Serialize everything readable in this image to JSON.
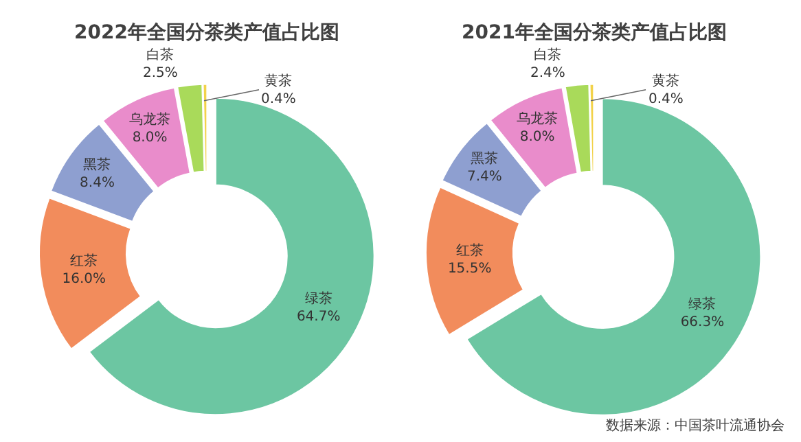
{
  "chart_data": [
    {
      "type": "donut",
      "title": "2022年全国分茶类产值占比图",
      "categories": [
        "绿茶",
        "红茶",
        "黑茶",
        "乌龙茶",
        "白茶",
        "黄茶"
      ],
      "values": [
        64.7,
        16.0,
        8.4,
        8.0,
        2.5,
        0.4
      ],
      "value_labels": [
        "64.7%",
        "16.0%",
        "8.4%",
        "8.0%",
        "2.5%",
        "0.4%"
      ],
      "colors": [
        "#6cc6a2",
        "#f28c5c",
        "#8e9fd0",
        "#e98ccb",
        "#a9da5a",
        "#f2d24a"
      ],
      "legend": false
    },
    {
      "type": "donut",
      "title": "2021年全国分茶类产值占比图",
      "categories": [
        "绿茶",
        "红茶",
        "黑茶",
        "乌龙茶",
        "白茶",
        "黄茶"
      ],
      "values": [
        66.3,
        15.5,
        7.4,
        8.0,
        2.4,
        0.4
      ],
      "value_labels": [
        "66.3%",
        "15.5%",
        "7.4%",
        "8.0%",
        "2.4%",
        "0.4%"
      ],
      "colors": [
        "#6cc6a2",
        "#f28c5c",
        "#8e9fd0",
        "#e98ccb",
        "#a9da5a",
        "#f2d24a"
      ],
      "legend": false,
      "annotations": [
        "数据来源：中国茶叶流通协会"
      ]
    }
  ]
}
